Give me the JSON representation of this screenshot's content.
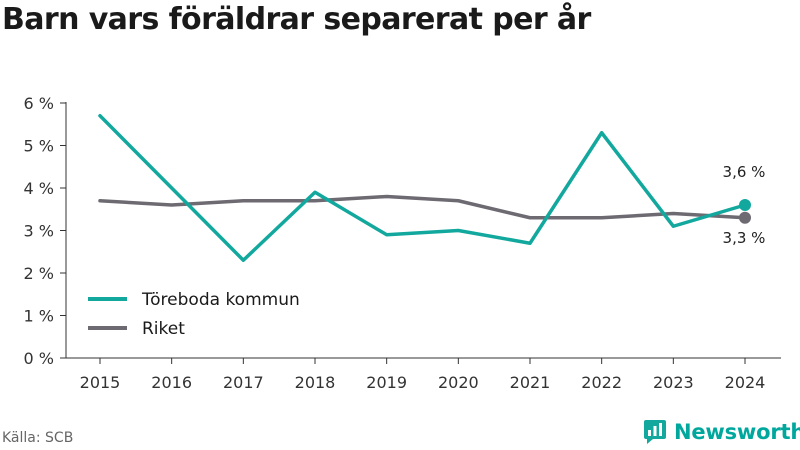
{
  "chart_data": {
    "type": "line",
    "title": "Barn vars föräldrar separerat per år",
    "categories": [
      "2015",
      "2016",
      "2017",
      "2018",
      "2019",
      "2020",
      "2021",
      "2022",
      "2023",
      "2024"
    ],
    "ylim": [
      0,
      6
    ],
    "yticks": [
      "0 %",
      "1 %",
      "2 %",
      "3 %",
      "4 %",
      "5 %",
      "6 %"
    ],
    "series": [
      {
        "name": "Töreboda kommun",
        "color": "#13a89e",
        "values": [
          5.7,
          4.0,
          2.3,
          3.9,
          2.9,
          3.0,
          2.7,
          5.3,
          3.1,
          3.6
        ],
        "end_label": "3,6 %"
      },
      {
        "name": "Riket",
        "color": "#6d6a72",
        "values": [
          3.7,
          3.6,
          3.7,
          3.7,
          3.8,
          3.7,
          3.3,
          3.3,
          3.4,
          3.3
        ],
        "end_label": "3,3 %"
      }
    ],
    "legend": "bottom-left",
    "grid": false
  },
  "source": "Källa: SCB",
  "brand": "Newsworthy"
}
